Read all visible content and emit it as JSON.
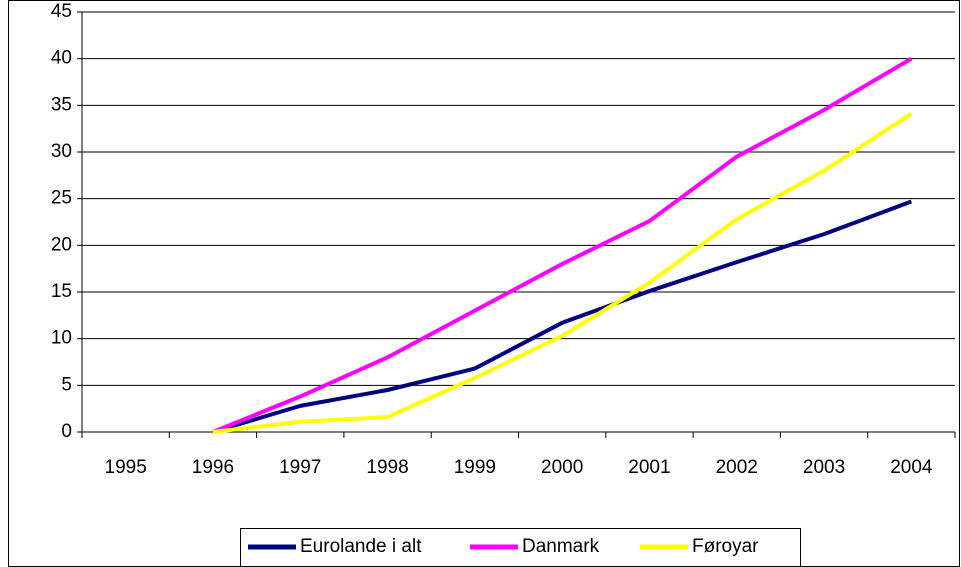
{
  "chart_data": {
    "type": "line",
    "categories": [
      "1995",
      "1996",
      "1997",
      "1998",
      "1999",
      "2000",
      "2001",
      "2002",
      "2003",
      "2004"
    ],
    "series": [
      {
        "name": "Eurolande i alt",
        "color": "#000080",
        "values": [
          null,
          0,
          2.8,
          4.5,
          6.8,
          11.7,
          15.1,
          18.2,
          21.2,
          24.7
        ]
      },
      {
        "name": "Danmark",
        "color": "#ff00ff",
        "values": [
          null,
          0,
          3.8,
          8,
          13,
          18,
          22.6,
          29.5,
          34.5,
          40
        ]
      },
      {
        "name": "Føroyar",
        "color": "#ffff00",
        "values": [
          null,
          0,
          1.1,
          1.6,
          5.8,
          10.3,
          16,
          22.8,
          28,
          34.1
        ]
      }
    ],
    "ylim": [
      0,
      45
    ],
    "yticks": [
      0,
      5,
      10,
      15,
      20,
      25,
      30,
      35,
      40,
      45
    ],
    "grid": true,
    "legend": "bottom"
  }
}
